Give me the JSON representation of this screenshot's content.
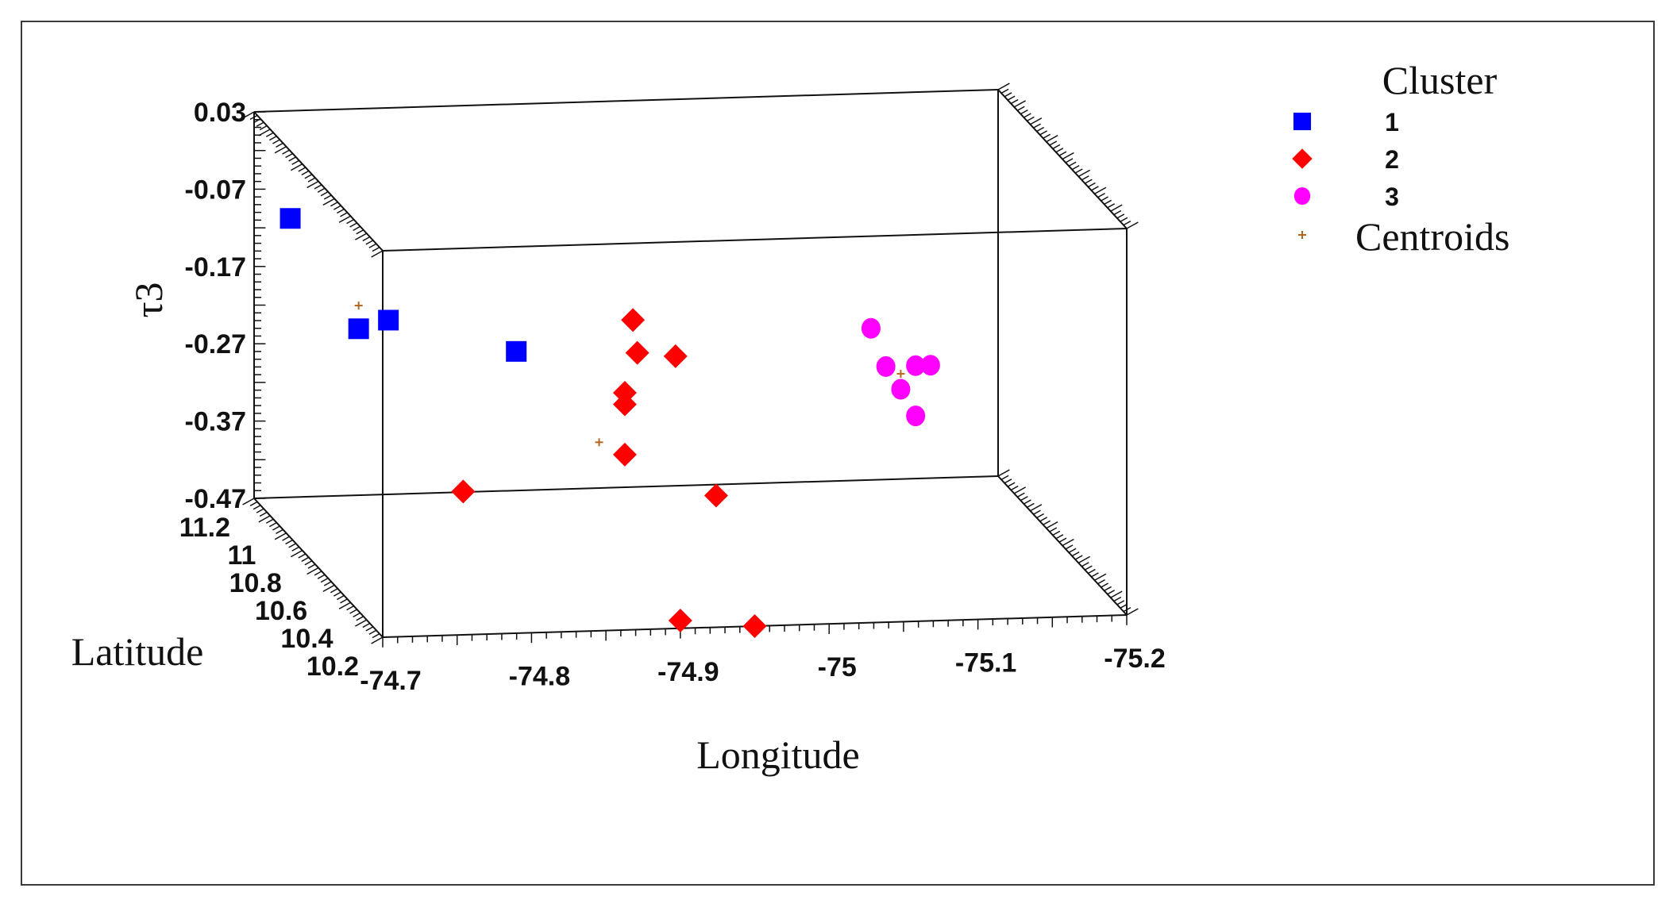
{
  "chart_data": {
    "type": "scatter",
    "projection": "3d",
    "xlabel": "Longitude",
    "ylabel": "Latitude",
    "zlabel": "τ3",
    "xlim": [
      -74.7,
      -75.2
    ],
    "ylim": [
      10.2,
      11.2
    ],
    "zlim": [
      -0.47,
      0.03
    ],
    "x_ticks": [
      "-74.7",
      "-74.8",
      "-74.9",
      "-75",
      "-75.1",
      "-75.2"
    ],
    "y_ticks": [
      "10.2",
      "10.4",
      "10.6",
      "10.8",
      "11",
      "11.2"
    ],
    "z_ticks": [
      "0.03",
      "-0.07",
      "-0.17",
      "-0.27",
      "-0.37",
      "-0.47"
    ],
    "legend": {
      "title": "Cluster",
      "position": "top-right",
      "entries": [
        {
          "label": "1",
          "marker": "square",
          "color": "#0000ff"
        },
        {
          "label": "2",
          "marker": "diamond",
          "color": "#ff0000"
        },
        {
          "label": "3",
          "marker": "circle",
          "color": "#ff00ff"
        },
        {
          "label": "Centroids",
          "marker": "plus",
          "color": "#b5651d"
        }
      ]
    },
    "series": [
      {
        "name": "1",
        "marker": "square",
        "color": "#0000ff",
        "points": [
          {
            "x": -74.72,
            "y": 11.15,
            "z": -0.1
          },
          {
            "x": -74.74,
            "y": 10.85,
            "z": -0.19
          },
          {
            "x": -74.76,
            "y": 10.85,
            "z": -0.18
          },
          {
            "x": -74.82,
            "y": 10.55,
            "z": -0.17
          }
        ]
      },
      {
        "name": "2",
        "marker": "diamond",
        "color": "#ff0000",
        "points": [
          {
            "x": -74.88,
            "y": 10.4,
            "z": -0.2
          },
          {
            "x": -74.88,
            "y": 10.4,
            "z": -0.215
          },
          {
            "x": -74.88,
            "y": 10.4,
            "z": -0.28
          },
          {
            "x": -74.91,
            "y": 10.65,
            "z": -0.195
          },
          {
            "x": -74.92,
            "y": 10.8,
            "z": -0.18
          },
          {
            "x": -74.94,
            "y": 10.7,
            "z": -0.21
          },
          {
            "x": -74.78,
            "y": 10.5,
            "z": -0.34
          },
          {
            "x": -74.95,
            "y": 10.5,
            "z": -0.355
          },
          {
            "x": -74.9,
            "y": 10.2,
            "z": -0.46
          },
          {
            "x": -74.95,
            "y": 10.2,
            "z": -0.47
          }
        ]
      },
      {
        "name": "3",
        "marker": "circle",
        "color": "#ff00ff",
        "points": [
          {
            "x": -75.08,
            "y": 10.8,
            "z": -0.2
          },
          {
            "x": -75.09,
            "y": 10.8,
            "z": -0.25
          },
          {
            "x": -75.11,
            "y": 10.8,
            "z": -0.25
          },
          {
            "x": -75.12,
            "y": 10.8,
            "z": -0.25
          },
          {
            "x": -75.1,
            "y": 10.8,
            "z": -0.28
          },
          {
            "x": -75.11,
            "y": 10.8,
            "z": -0.315
          }
        ]
      },
      {
        "name": "Centroids",
        "marker": "plus",
        "color": "#b5651d",
        "points": [
          {
            "x": -74.74,
            "y": 10.85,
            "z": -0.16
          },
          {
            "x": -74.88,
            "y": 10.6,
            "z": -0.3
          },
          {
            "x": -75.1,
            "y": 10.8,
            "z": -0.26
          }
        ]
      }
    ]
  }
}
